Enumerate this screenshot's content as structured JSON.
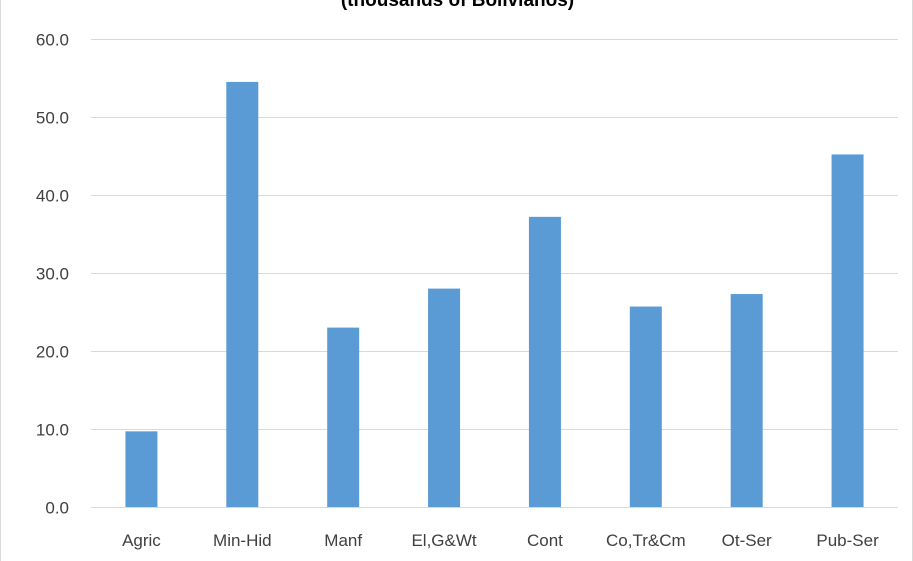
{
  "chart_data": {
    "type": "bar",
    "title": "(thousands of Bolivianos)",
    "xlabel": "",
    "ylabel": "",
    "categories": [
      "Agric",
      "Min-Hid",
      "Manf",
      "El,G&Wt",
      "Cont",
      "Co,Tr&Cm",
      "Ot-Ser",
      "Pub-Ser"
    ],
    "values": [
      9.7,
      54.5,
      23.0,
      28.0,
      37.2,
      25.7,
      27.3,
      45.2
    ],
    "ylim": [
      0,
      60
    ],
    "yticks": [
      "0.0",
      "10.0",
      "20.0",
      "30.0",
      "40.0",
      "50.0",
      "60.0"
    ],
    "grid": true,
    "bar_color": "#5b9bd5",
    "grid_color": "#d9d9d9"
  }
}
